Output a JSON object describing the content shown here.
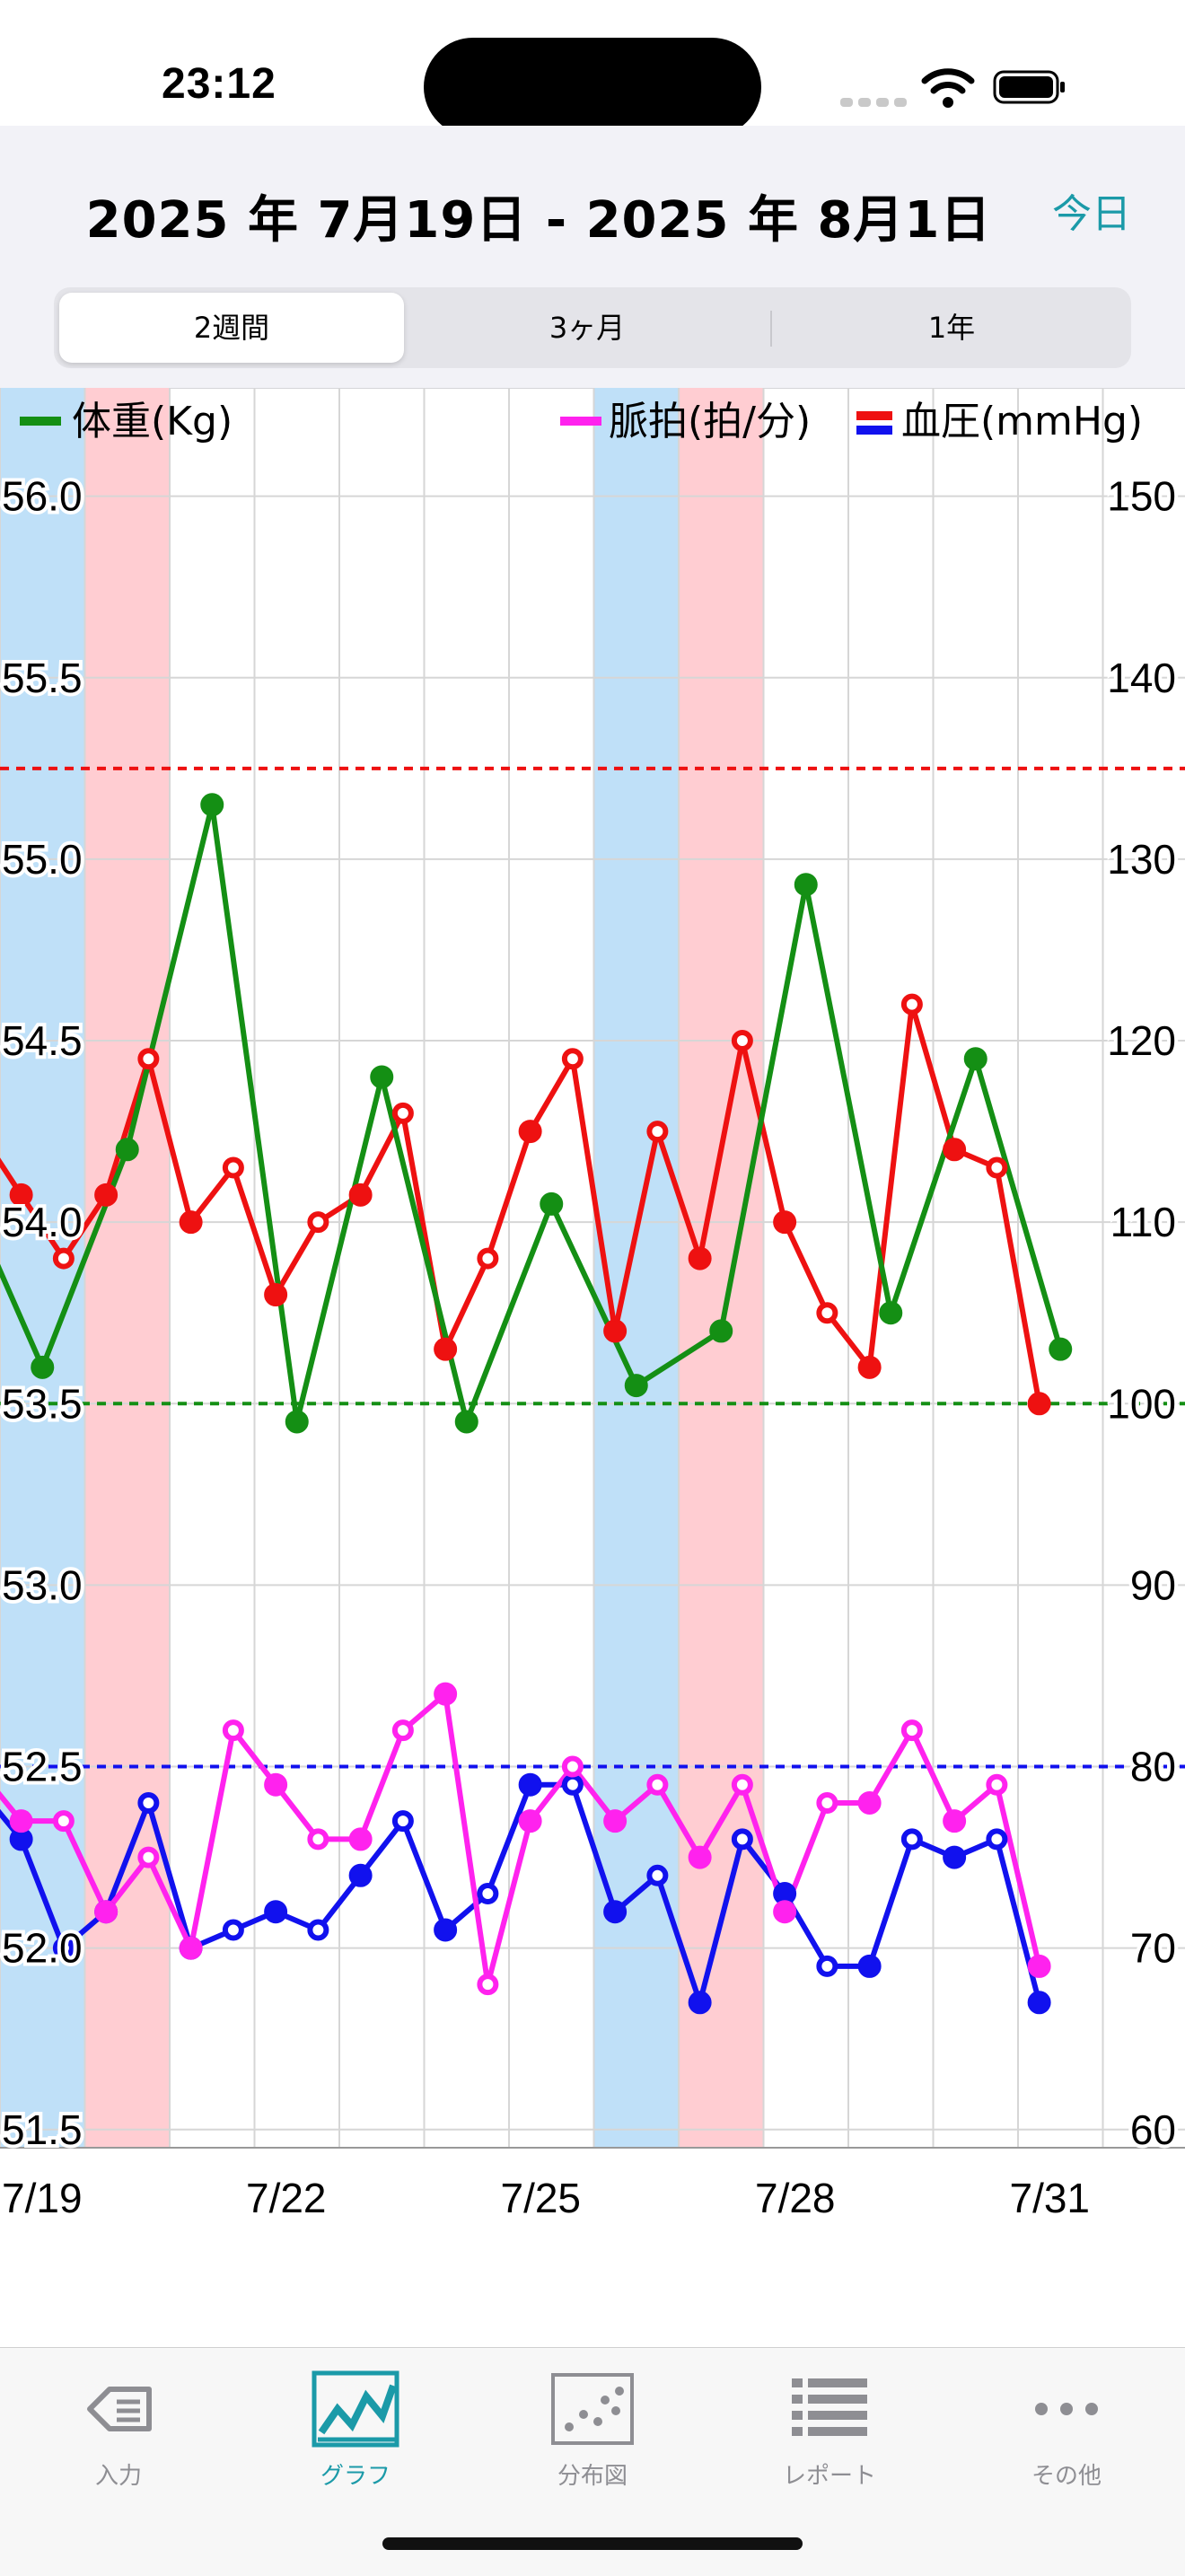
{
  "status_bar": {
    "time": "23:12"
  },
  "header": {
    "date_range": "2025 年 7月19日 - 2025 年 8月1日",
    "today_label": "今日",
    "segments": [
      {
        "label": "2週間",
        "selected": true
      },
      {
        "label": "3ヶ月",
        "selected": false
      },
      {
        "label": "1年",
        "selected": false
      }
    ]
  },
  "colors": {
    "weight": "#148f14",
    "bp": "#ee1111",
    "pulse": "#ff22ee",
    "bp_low": "#1111ee",
    "saturday": "#bfe0f8",
    "sunday": "#ffcdd2",
    "accent": "#1b9aa8"
  },
  "chart_data": {
    "type": "line",
    "legend": {
      "weight": "体重(Kg)",
      "pulse": "脈拍(拍/分)",
      "bp": "血圧(mmHg)"
    },
    "x_tick_labels": [
      "7/19",
      "7/22",
      "7/25",
      "7/28",
      "7/31"
    ],
    "x_tick_positions": [
      0,
      3,
      6,
      9,
      12
    ],
    "x_range": [
      0,
      13.5
    ],
    "left_axis": {
      "range": [
        51.45,
        56.15
      ],
      "ticks": [
        "51.5",
        "52.0",
        "52.5",
        "53.0",
        "53.5",
        "54.0",
        "54.5",
        "55.0",
        "55.5",
        "56.0"
      ]
    },
    "right_axis": {
      "range": [
        59,
        153
      ],
      "ticks": [
        "60",
        "70",
        "80",
        "90",
        "100",
        "110",
        "120",
        "130",
        "140",
        "150"
      ]
    },
    "target_lines": {
      "bp_high": 135,
      "weight": 53.5,
      "bp_low": 80
    },
    "weekend_bands": [
      {
        "type": "sat",
        "start": 0,
        "end": 1
      },
      {
        "type": "sun",
        "start": 1,
        "end": 2
      },
      {
        "type": "sat",
        "start": 7,
        "end": 8
      },
      {
        "type": "sun",
        "start": 8,
        "end": 9
      }
    ],
    "series": {
      "weight": [
        {
          "x": -0.1,
          "y": 53.92
        },
        {
          "x": 0.5,
          "y": 53.6
        },
        {
          "x": 1.5,
          "y": 54.2
        },
        {
          "x": 2.5,
          "y": 55.15
        },
        {
          "x": 3.5,
          "y": 53.45
        },
        {
          "x": 4.5,
          "y": 54.4
        },
        {
          "x": 5.5,
          "y": 53.45
        },
        {
          "x": 6.5,
          "y": 54.05
        },
        {
          "x": 7.5,
          "y": 53.55
        },
        {
          "x": 8.5,
          "y": 53.7
        },
        {
          "x": 9.5,
          "y": 54.93
        },
        {
          "x": 10.5,
          "y": 53.75
        },
        {
          "x": 11.5,
          "y": 54.45
        },
        {
          "x": 12.5,
          "y": 53.65
        }
      ],
      "bp_high": [
        {
          "x": -0.1,
          "y": 114
        },
        {
          "x": 0.25,
          "y": 111.5,
          "open": false
        },
        {
          "x": 0.75,
          "y": 108,
          "open": true
        },
        {
          "x": 1.25,
          "y": 111.5,
          "open": false
        },
        {
          "x": 1.75,
          "y": 119,
          "open": true
        },
        {
          "x": 2.25,
          "y": 110,
          "open": false
        },
        {
          "x": 2.75,
          "y": 113,
          "open": true
        },
        {
          "x": 3.25,
          "y": 106,
          "open": false
        },
        {
          "x": 3.75,
          "y": 110,
          "open": true
        },
        {
          "x": 4.25,
          "y": 111.5,
          "open": false
        },
        {
          "x": 4.75,
          "y": 116,
          "open": true
        },
        {
          "x": 5.25,
          "y": 103,
          "open": false
        },
        {
          "x": 5.75,
          "y": 108,
          "open": true
        },
        {
          "x": 6.25,
          "y": 115,
          "open": false
        },
        {
          "x": 6.75,
          "y": 119,
          "open": true
        },
        {
          "x": 7.25,
          "y": 104,
          "open": false
        },
        {
          "x": 7.75,
          "y": 115,
          "open": true
        },
        {
          "x": 8.25,
          "y": 108,
          "open": false
        },
        {
          "x": 8.75,
          "y": 120,
          "open": true
        },
        {
          "x": 9.25,
          "y": 110,
          "open": false
        },
        {
          "x": 9.75,
          "y": 105,
          "open": true
        },
        {
          "x": 10.25,
          "y": 102,
          "open": false
        },
        {
          "x": 10.75,
          "y": 122,
          "open": true
        },
        {
          "x": 11.25,
          "y": 114,
          "open": false
        },
        {
          "x": 11.75,
          "y": 113,
          "open": true
        },
        {
          "x": 12.25,
          "y": 100,
          "open": false
        }
      ],
      "pulse": [
        {
          "x": -0.1,
          "y": 79
        },
        {
          "x": 0.25,
          "y": 77,
          "open": false
        },
        {
          "x": 0.75,
          "y": 77,
          "open": true
        },
        {
          "x": 1.25,
          "y": 72,
          "open": false
        },
        {
          "x": 1.75,
          "y": 75,
          "open": true
        },
        {
          "x": 2.25,
          "y": 70,
          "open": false
        },
        {
          "x": 2.75,
          "y": 82,
          "open": true
        },
        {
          "x": 3.25,
          "y": 79,
          "open": false
        },
        {
          "x": 3.75,
          "y": 76,
          "open": true
        },
        {
          "x": 4.25,
          "y": 76,
          "open": false
        },
        {
          "x": 4.75,
          "y": 82,
          "open": true
        },
        {
          "x": 5.25,
          "y": 84,
          "open": false
        },
        {
          "x": 5.75,
          "y": 68,
          "open": true
        },
        {
          "x": 6.25,
          "y": 77,
          "open": false
        },
        {
          "x": 6.75,
          "y": 80,
          "open": true
        },
        {
          "x": 7.25,
          "y": 77,
          "open": false
        },
        {
          "x": 7.75,
          "y": 79,
          "open": true
        },
        {
          "x": 8.25,
          "y": 75,
          "open": false
        },
        {
          "x": 8.75,
          "y": 79,
          "open": true
        },
        {
          "x": 9.25,
          "y": 72,
          "open": false
        },
        {
          "x": 9.75,
          "y": 78,
          "open": true
        },
        {
          "x": 10.25,
          "y": 78,
          "open": false
        },
        {
          "x": 10.75,
          "y": 82,
          "open": true
        },
        {
          "x": 11.25,
          "y": 77,
          "open": false
        },
        {
          "x": 11.75,
          "y": 79,
          "open": true
        },
        {
          "x": 12.25,
          "y": 69,
          "open": false
        }
      ],
      "bp_low": [
        {
          "x": -0.1,
          "y": 78
        },
        {
          "x": 0.25,
          "y": 76,
          "open": false
        },
        {
          "x": 0.75,
          "y": 70,
          "open": true
        },
        {
          "x": 1.25,
          "y": 72,
          "open": false
        },
        {
          "x": 1.75,
          "y": 78,
          "open": true
        },
        {
          "x": 2.25,
          "y": 70,
          "open": false
        },
        {
          "x": 2.75,
          "y": 71,
          "open": true
        },
        {
          "x": 3.25,
          "y": 72,
          "open": false
        },
        {
          "x": 3.75,
          "y": 71,
          "open": true
        },
        {
          "x": 4.25,
          "y": 74,
          "open": false
        },
        {
          "x": 4.75,
          "y": 77,
          "open": true
        },
        {
          "x": 5.25,
          "y": 71,
          "open": false
        },
        {
          "x": 5.75,
          "y": 73,
          "open": true
        },
        {
          "x": 6.25,
          "y": 79,
          "open": false
        },
        {
          "x": 6.75,
          "y": 79,
          "open": true
        },
        {
          "x": 7.25,
          "y": 72,
          "open": false
        },
        {
          "x": 7.75,
          "y": 74,
          "open": true
        },
        {
          "x": 8.25,
          "y": 67,
          "open": false
        },
        {
          "x": 8.75,
          "y": 76,
          "open": true
        },
        {
          "x": 9.25,
          "y": 73,
          "open": false
        },
        {
          "x": 9.75,
          "y": 69,
          "open": true
        },
        {
          "x": 10.25,
          "y": 69,
          "open": false
        },
        {
          "x": 10.75,
          "y": 76,
          "open": true
        },
        {
          "x": 11.25,
          "y": 75,
          "open": false
        },
        {
          "x": 11.75,
          "y": 76,
          "open": true
        },
        {
          "x": 12.25,
          "y": 67,
          "open": false
        }
      ]
    }
  },
  "tabbar": {
    "items": [
      {
        "label": "入力",
        "icon": "input-tag-icon"
      },
      {
        "label": "グラフ",
        "icon": "graph-icon",
        "selected": true
      },
      {
        "label": "分布図",
        "icon": "scatter-icon"
      },
      {
        "label": "レポート",
        "icon": "list-icon"
      },
      {
        "label": "その他",
        "icon": "more-icon"
      }
    ]
  }
}
